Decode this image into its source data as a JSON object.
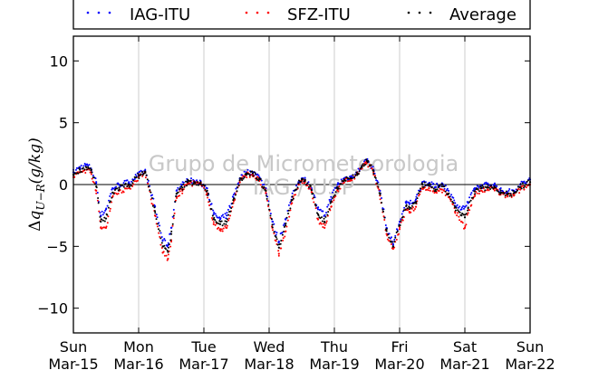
{
  "chart_data": {
    "type": "scatter",
    "title": "",
    "xlabel": "",
    "ylabel": "Δq_{U−R}(g/kg)",
    "ylabel_parts": {
      "delta": "Δ",
      "q": "q",
      "sub": "U−R",
      "units": "(g/kg)"
    },
    "ylim": [
      -12,
      12
    ],
    "yticks": [
      -10,
      -5,
      0,
      5,
      10
    ],
    "ytick_labels": [
      "−10",
      "−5",
      "0",
      "5",
      "10"
    ],
    "xlim": [
      0,
      7
    ],
    "x_unit": "days from Sun Mar-15",
    "xticks": [
      {
        "day": "Sun",
        "date": "Mar-15"
      },
      {
        "day": "Mon",
        "date": "Mar-16"
      },
      {
        "day": "Tue",
        "date": "Mar-17"
      },
      {
        "day": "Wed",
        "date": "Mar-18"
      },
      {
        "day": "Thu",
        "date": "Mar-19"
      },
      {
        "day": "Fri",
        "date": "Mar-20"
      },
      {
        "day": "Sat",
        "date": "Mar-21"
      },
      {
        "day": "Sun",
        "date": "Mar-22"
      }
    ],
    "grid": "vertical",
    "zero_line": true,
    "legend": {
      "placement": "top",
      "entries": [
        "IAG-ITU",
        "SFZ-ITU",
        "Average"
      ]
    },
    "watermark": {
      "line1": "Grupo de Micrometeorologia",
      "line2": "IAG / USP"
    },
    "series": [
      {
        "name": "IAG-ITU",
        "color": "#0000ff",
        "offset": 0.35,
        "x": [
          0.0,
          0.1,
          0.2,
          0.27,
          0.35,
          0.42,
          0.5,
          0.6,
          0.7,
          0.85,
          1.0,
          1.1,
          1.25,
          1.37,
          1.45,
          1.5,
          1.58,
          1.67,
          1.75,
          1.85,
          1.95,
          2.05,
          2.15,
          2.25,
          2.35,
          2.45,
          2.55,
          2.65,
          2.75,
          2.85,
          2.95,
          3.05,
          3.15,
          3.25,
          3.35,
          3.45,
          3.5,
          3.55,
          3.65,
          3.75,
          3.85,
          3.95,
          4.05,
          4.15,
          4.25,
          4.35,
          4.42,
          4.5,
          4.6,
          4.7,
          4.8,
          4.9,
          5.0,
          5.1,
          5.15,
          5.25,
          5.35,
          5.45,
          5.55,
          5.65,
          5.75,
          5.85,
          5.95,
          6.0,
          6.05,
          6.15,
          6.25,
          6.35,
          6.45,
          6.55,
          6.65,
          6.75,
          6.85,
          7.0
        ],
        "y": [
          1.0,
          1.4,
          1.6,
          1.3,
          0.2,
          -2.5,
          -2.0,
          -0.3,
          0.0,
          0.2,
          0.8,
          1.1,
          -1.8,
          -4.5,
          -4.9,
          -3.5,
          -0.5,
          0.0,
          0.3,
          0.3,
          0.1,
          -0.3,
          -2.4,
          -2.8,
          -2.5,
          -1.0,
          0.5,
          1.0,
          1.0,
          0.6,
          -0.3,
          -3.0,
          -4.6,
          -2.8,
          -1.0,
          0.2,
          0.5,
          0.4,
          -0.3,
          -2.0,
          -2.5,
          -1.0,
          0.0,
          0.5,
          0.6,
          1.0,
          1.5,
          2.0,
          1.2,
          -0.5,
          -3.5,
          -4.8,
          -3.0,
          -1.5,
          -1.5,
          -1.2,
          0.2,
          0.1,
          -0.2,
          0.1,
          -0.5,
          -1.5,
          -2.0,
          -1.8,
          -1.5,
          -0.3,
          -0.1,
          0.0,
          0.0,
          -0.5,
          -0.6,
          -0.5,
          0.0,
          0.4
        ]
      },
      {
        "name": "SFZ-ITU",
        "color": "#ff0000",
        "offset": -0.35,
        "x": [
          0.0,
          0.1,
          0.2,
          0.27,
          0.35,
          0.42,
          0.5,
          0.6,
          0.7,
          0.85,
          1.0,
          1.1,
          1.25,
          1.37,
          1.45,
          1.5,
          1.58,
          1.67,
          1.75,
          1.85,
          1.95,
          2.05,
          2.15,
          2.25,
          2.35,
          2.45,
          2.55,
          2.65,
          2.75,
          2.85,
          2.95,
          3.05,
          3.15,
          3.25,
          3.35,
          3.45,
          3.5,
          3.55,
          3.65,
          3.75,
          3.85,
          3.95,
          4.05,
          4.15,
          4.25,
          4.35,
          4.42,
          4.5,
          4.6,
          4.7,
          4.8,
          4.9,
          5.0,
          5.1,
          5.15,
          5.25,
          5.35,
          5.45,
          5.55,
          5.65,
          5.75,
          5.85,
          5.95,
          6.0,
          6.05,
          6.15,
          6.25,
          6.35,
          6.45,
          6.55,
          6.65,
          6.75,
          6.85,
          7.0
        ],
        "y": [
          0.6,
          1.0,
          1.2,
          1.0,
          -0.5,
          -3.5,
          -3.5,
          -1.0,
          -0.5,
          -0.3,
          0.6,
          1.0,
          -2.5,
          -5.5,
          -6.0,
          -4.5,
          -1.0,
          -0.5,
          0.1,
          0.1,
          0.0,
          -0.7,
          -3.2,
          -3.6,
          -3.5,
          -1.5,
          0.2,
          0.8,
          0.8,
          0.3,
          -0.7,
          -3.5,
          -5.6,
          -3.8,
          -1.5,
          0.0,
          0.3,
          0.2,
          -0.6,
          -2.8,
          -3.5,
          -1.8,
          -0.4,
          0.3,
          0.4,
          0.8,
          1.3,
          1.8,
          1.0,
          -0.9,
          -4.0,
          -5.2,
          -3.6,
          -2.0,
          -2.2,
          -1.8,
          -0.2,
          -0.3,
          -0.6,
          -0.4,
          -1.0,
          -2.2,
          -3.0,
          -3.5,
          -2.3,
          -0.8,
          -0.5,
          -0.4,
          -0.3,
          -0.8,
          -0.9,
          -0.9,
          -0.4,
          0.0
        ]
      },
      {
        "name": "Average",
        "color": "#000000",
        "offset": 0.0,
        "x": [
          0.0,
          0.1,
          0.2,
          0.27,
          0.35,
          0.42,
          0.5,
          0.6,
          0.7,
          0.85,
          1.0,
          1.1,
          1.25,
          1.37,
          1.45,
          1.5,
          1.58,
          1.67,
          1.75,
          1.85,
          1.95,
          2.05,
          2.15,
          2.25,
          2.35,
          2.45,
          2.55,
          2.65,
          2.75,
          2.85,
          2.95,
          3.05,
          3.15,
          3.25,
          3.35,
          3.45,
          3.5,
          3.55,
          3.65,
          3.75,
          3.85,
          3.95,
          4.05,
          4.15,
          4.25,
          4.35,
          4.42,
          4.5,
          4.6,
          4.7,
          4.8,
          4.9,
          5.0,
          5.1,
          5.15,
          5.25,
          5.35,
          5.45,
          5.55,
          5.65,
          5.75,
          5.85,
          5.95,
          6.0,
          6.05,
          6.15,
          6.25,
          6.35,
          6.45,
          6.55,
          6.65,
          6.75,
          6.85,
          7.0
        ],
        "y": [
          0.8,
          1.2,
          1.4,
          1.15,
          -0.15,
          -3.0,
          -2.75,
          -0.65,
          -0.25,
          -0.05,
          0.7,
          1.05,
          -2.15,
          -5.0,
          -5.45,
          -4.0,
          -0.75,
          -0.25,
          0.2,
          0.2,
          0.05,
          -0.5,
          -2.8,
          -3.2,
          -3.0,
          -1.25,
          0.35,
          0.9,
          0.9,
          0.45,
          -0.5,
          -3.25,
          -5.1,
          -3.3,
          -1.25,
          0.1,
          0.4,
          0.3,
          -0.45,
          -2.4,
          -3.0,
          -1.4,
          -0.2,
          0.4,
          0.5,
          0.9,
          1.4,
          1.9,
          1.1,
          -0.7,
          -3.75,
          -5.0,
          -3.3,
          -1.75,
          -1.85,
          -1.5,
          0.0,
          -0.1,
          -0.4,
          -0.15,
          -0.75,
          -1.85,
          -2.5,
          -2.65,
          -1.9,
          -0.55,
          -0.3,
          -0.2,
          -0.15,
          -0.65,
          -0.75,
          -0.7,
          -0.2,
          0.2
        ]
      }
    ]
  }
}
